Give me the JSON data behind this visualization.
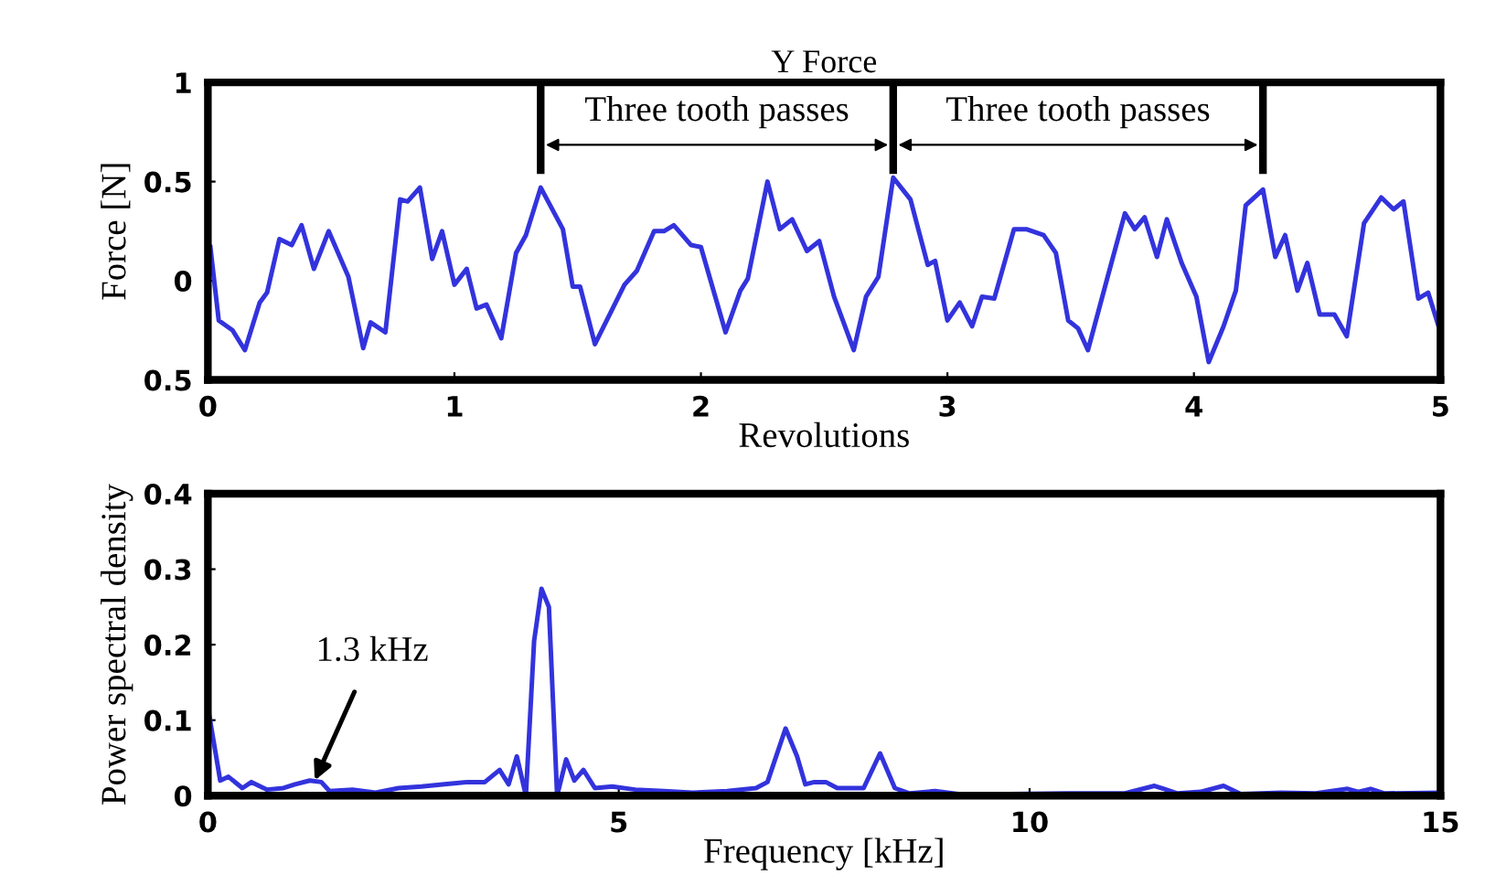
{
  "chart_data": [
    {
      "type": "line",
      "title": "Y Force",
      "xlabel": "Revolutions",
      "ylabel": "Force [N]",
      "xlim": [
        0,
        5
      ],
      "ylim": [
        -0.5,
        1
      ],
      "xticks": [
        0,
        1,
        2,
        3,
        4,
        5
      ],
      "yticks": [
        {
          "value": -0.5,
          "label": "0.5"
        },
        0,
        0.5,
        1
      ],
      "grid": false,
      "ref_lines": [
        {
          "axis": "x",
          "value": 1.35
        },
        {
          "axis": "x",
          "value": 2.78
        },
        {
          "axis": "x",
          "value": 4.28
        }
      ],
      "annotations": [
        "Three tooth passes",
        "Three tooth passes"
      ],
      "series": [
        {
          "color": "#3333dd",
          "x": [
            0.01,
            0.044,
            0.1,
            0.15,
            0.21,
            0.24,
            0.29,
            0.34,
            0.38,
            0.43,
            0.49,
            0.57,
            0.63,
            0.66,
            0.72,
            0.78,
            0.81,
            0.86,
            0.91,
            0.95,
            1.0,
            1.05,
            1.09,
            1.13,
            1.19,
            1.25,
            1.29,
            1.35,
            1.44,
            1.48,
            1.51,
            1.57,
            1.69,
            1.74,
            1.81,
            1.85,
            1.89,
            1.96,
            2.0,
            2.1,
            2.16,
            2.19,
            2.27,
            2.32,
            2.37,
            2.43,
            2.48,
            2.54,
            2.62,
            2.67,
            2.72,
            2.78,
            2.85,
            2.92,
            2.95,
            3.0,
            3.05,
            3.1,
            3.14,
            3.19,
            3.27,
            3.32,
            3.39,
            3.44,
            3.49,
            3.53,
            3.57,
            3.65,
            3.72,
            3.76,
            3.8,
            3.85,
            3.89,
            3.95,
            4.01,
            4.06,
            4.12,
            4.17,
            4.21,
            4.28,
            4.33,
            4.37,
            4.42,
            4.46,
            4.51,
            4.57,
            4.62,
            4.69,
            4.76,
            4.81,
            4.85,
            4.91,
            4.95,
            5.0
          ],
          "values": [
            0.17,
            -0.2,
            -0.25,
            -0.35,
            -0.11,
            -0.06,
            0.21,
            0.18,
            0.28,
            0.06,
            0.25,
            0.02,
            -0.34,
            -0.21,
            -0.26,
            0.41,
            0.4,
            0.47,
            0.11,
            0.25,
            -0.02,
            0.06,
            -0.14,
            -0.12,
            -0.29,
            0.14,
            0.23,
            0.47,
            0.26,
            -0.03,
            -0.03,
            -0.32,
            -0.02,
            0.05,
            0.25,
            0.25,
            0.28,
            0.18,
            0.17,
            -0.26,
            -0.05,
            0.01,
            0.5,
            0.26,
            0.31,
            0.15,
            0.2,
            -0.08,
            -0.35,
            -0.08,
            0.02,
            0.52,
            0.41,
            0.08,
            0.1,
            -0.2,
            -0.11,
            -0.23,
            -0.08,
            -0.09,
            0.26,
            0.26,
            0.23,
            0.14,
            -0.2,
            -0.24,
            -0.35,
            0.02,
            0.34,
            0.26,
            0.32,
            0.12,
            0.31,
            0.09,
            -0.08,
            -0.41,
            -0.23,
            -0.05,
            0.38,
            0.46,
            0.12,
            0.23,
            -0.05,
            0.09,
            -0.17,
            -0.17,
            -0.28,
            0.29,
            0.42,
            0.36,
            0.4,
            -0.09,
            -0.06,
            -0.26
          ]
        }
      ]
    },
    {
      "type": "line",
      "xlabel": "Frequency [kHz]",
      "ylabel": "Power spectral density",
      "xlim": [
        0,
        15
      ],
      "ylim": [
        0,
        0.4
      ],
      "xticks": [
        0,
        5,
        10,
        15
      ],
      "yticks": [
        0,
        0.1,
        0.2,
        0.3,
        0.4
      ],
      "grid": false,
      "annotations": [
        {
          "text": "1.3 kHz",
          "x": 1.3,
          "y": 0.02
        }
      ],
      "series": [
        {
          "color": "#3333dd",
          "x": [
            0,
            0.15,
            0.25,
            0.42,
            0.53,
            0.72,
            0.92,
            1.06,
            1.24,
            1.38,
            1.48,
            1.76,
            2.04,
            2.32,
            2.6,
            2.88,
            3.16,
            3.37,
            3.55,
            3.66,
            3.76,
            3.87,
            3.97,
            4.06,
            4.15,
            4.25,
            4.36,
            4.46,
            4.57,
            4.71,
            4.92,
            5.2,
            5.55,
            5.9,
            6.32,
            6.67,
            6.81,
            7.03,
            7.17,
            7.27,
            7.38,
            7.52,
            7.66,
            7.8,
            7.98,
            8.18,
            8.36,
            8.54,
            8.85,
            9.13,
            9.76,
            10.46,
            11.16,
            11.52,
            11.8,
            12.08,
            12.36,
            12.57,
            13.06,
            13.48,
            13.87,
            14.0,
            14.15,
            14.32,
            15.0
          ],
          "values": [
            0.117,
            0.02,
            0.025,
            0.01,
            0.018,
            0.008,
            0.01,
            0.015,
            0.02,
            0.018,
            0.006,
            0.008,
            0.004,
            0.01,
            0.012,
            0.015,
            0.018,
            0.018,
            0.034,
            0.015,
            0.052,
            0,
            0.205,
            0.274,
            0.25,
            0,
            0.048,
            0.02,
            0.034,
            0.01,
            0.012,
            0.008,
            0.006,
            0.004,
            0.006,
            0.01,
            0.018,
            0.089,
            0.052,
            0.015,
            0.018,
            0.018,
            0.01,
            0.01,
            0.01,
            0.056,
            0.01,
            0.003,
            0.006,
            0.002,
            0.002,
            0.003,
            0.003,
            0.013,
            0.003,
            0.005,
            0.013,
            0.002,
            0.004,
            0.003,
            0.009,
            0.005,
            0.009,
            0.003,
            0.004
          ]
        }
      ]
    }
  ]
}
